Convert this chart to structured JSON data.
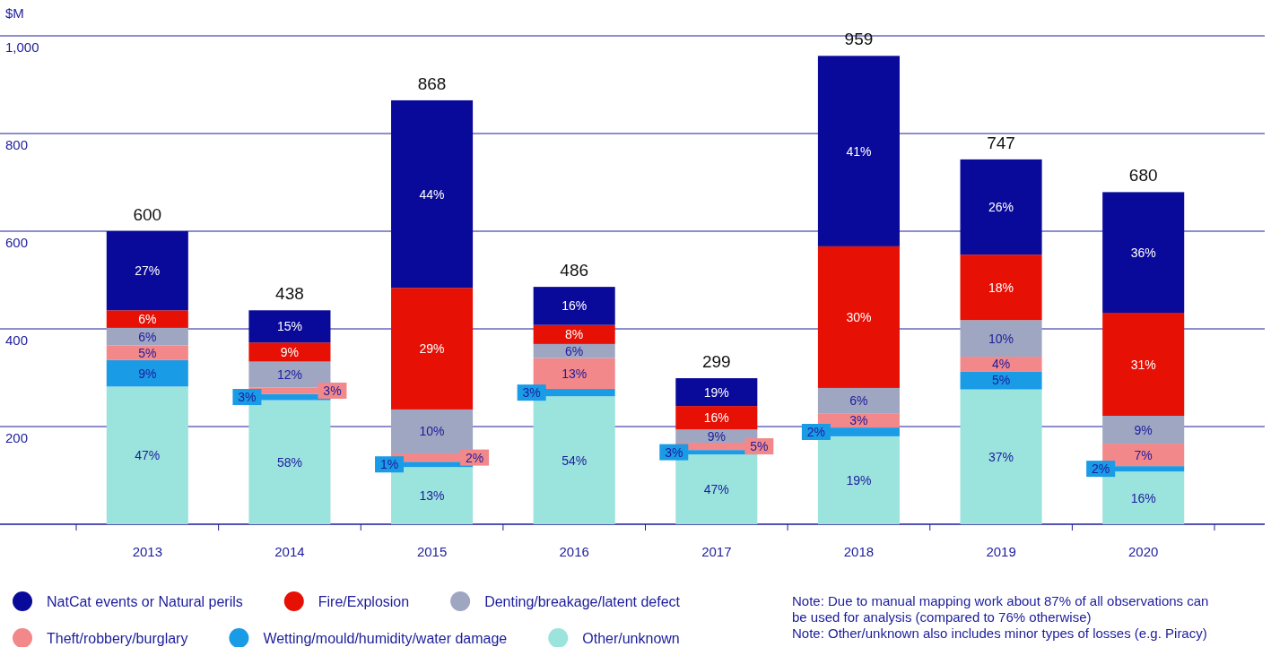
{
  "chart_data": {
    "type": "bar",
    "stacked": true,
    "ylabel": "$M",
    "categories": [
      "2013",
      "2014",
      "2015",
      "2016",
      "2017",
      "2018",
      "2019",
      "2020"
    ],
    "series": [
      {
        "name": "Other/unknown",
        "color": "#9be3dd",
        "values": [
          282,
          254,
          117,
          262,
          143,
          180,
          276,
          108
        ]
      },
      {
        "name": "Wetting/mould/humidity/water damage",
        "color": "#1a9be6",
        "values": [
          54,
          13,
          11,
          15,
          9,
          18,
          37,
          11
        ]
      },
      {
        "name": "Theft/robbery/burglary",
        "color": "#f2888a",
        "values": [
          30,
          13,
          17,
          63,
          15,
          28,
          30,
          46
        ]
      },
      {
        "name": "Denting/breakage/latent defect",
        "color": "#9ea6c2",
        "values": [
          36,
          53,
          90,
          29,
          27,
          53,
          75,
          57
        ]
      },
      {
        "name": "Fire/Explosion",
        "color": "#e61005",
        "values": [
          36,
          39,
          249,
          39,
          48,
          290,
          134,
          211
        ]
      },
      {
        "name": "NatCat events or Natural perils",
        "color": "#0a0a9a",
        "values": [
          162,
          66,
          384,
          78,
          57,
          390,
          195,
          247
        ]
      }
    ],
    "totals": [
      "600",
      "438",
      "868",
      "486",
      "299",
      "959",
      "747",
      "680"
    ],
    "ylim": [
      0,
      1000
    ],
    "yticks": [
      {
        "value": 0,
        "label": null
      },
      200,
      400,
      600,
      800,
      {
        "value": 1000,
        "label": "1,000"
      }
    ],
    "grid": "y",
    "legend": "bottom",
    "annotations": [
      "47%",
      "9%",
      "5%",
      "6%",
      "6%",
      "27%",
      "58%",
      "3%",
      "3%",
      "12%",
      "9%",
      "15%",
      "13%",
      "1%",
      "2%",
      "10%",
      "29%",
      "44%",
      "54%",
      "3%",
      "13%",
      "6%",
      "8%",
      "16%",
      "47%",
      "3%",
      "5%",
      "9%",
      "16%",
      "19%",
      "19%",
      "2%",
      "3%",
      "6%",
      "30%",
      "41%",
      "37%",
      "5%",
      "4%",
      "10%",
      "18%",
      "26%",
      "16%",
      "2%",
      "7%",
      "9%",
      "31%",
      "36%",
      "Note: Due to manual mapping work about 87% of all observations can be used for analysis (compared to 76% otherwise)",
      "Note: Other/unknown also includes minor types of losses (e.g. Piracy)"
    ]
  }
}
